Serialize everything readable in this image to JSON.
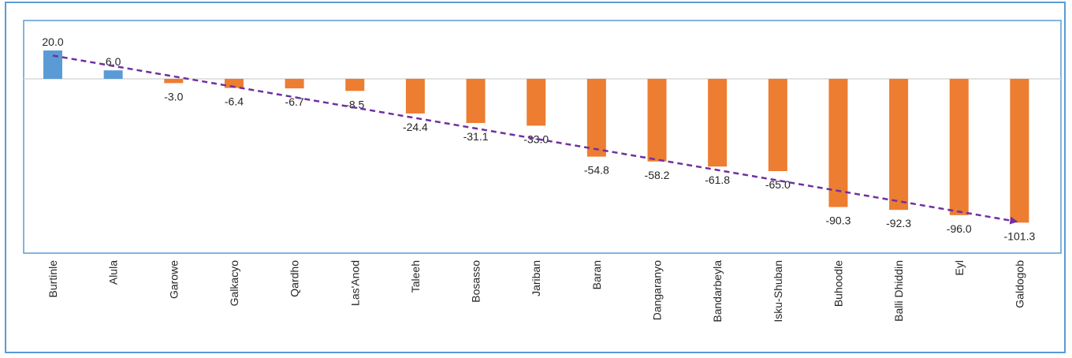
{
  "chart_data": {
    "type": "bar",
    "categories": [
      "Burtinle",
      "Alula",
      "Garowe",
      "Galkacyo",
      "Qardho",
      "Las'Anod",
      "Taleeh",
      "Bosasso",
      "Jariban",
      "Baran",
      "Dangaranyo",
      "Bandarbeyla",
      "Isku-Shuban",
      "Buhoodle",
      "Balli Dhiddin",
      "Eyl",
      "Galdogob"
    ],
    "values": [
      20.0,
      6.0,
      -3.0,
      -6.4,
      -6.7,
      -8.5,
      -24.4,
      -31.1,
      -33.0,
      -54.8,
      -58.2,
      -61.8,
      -65.0,
      -90.3,
      -92.3,
      -96.0,
      -101.3
    ],
    "data_labels": [
      "20.0",
      "6.0",
      "-3.0",
      "-6.4",
      "-6.7",
      "-8.5",
      "-24.4",
      "-31.1",
      "-33.0",
      "-54.8",
      "-58.2",
      "-61.8",
      "-65.0",
      "-90.3",
      "-92.3",
      "-96.0",
      "-101.3"
    ],
    "title": "",
    "xlabel": "",
    "ylabel": "",
    "ylim": [
      -118,
      20
    ],
    "grid": false,
    "colors": {
      "positive": "#5b9bd5",
      "negative": "#ed7d31",
      "trendline": "#7030a0",
      "frame": "#5b9bd5",
      "zero_line": "#d9d9d9"
    },
    "trendline": {
      "style": "dashed",
      "arrow": true,
      "from_value": 16.4,
      "to_value": -100.5
    }
  }
}
